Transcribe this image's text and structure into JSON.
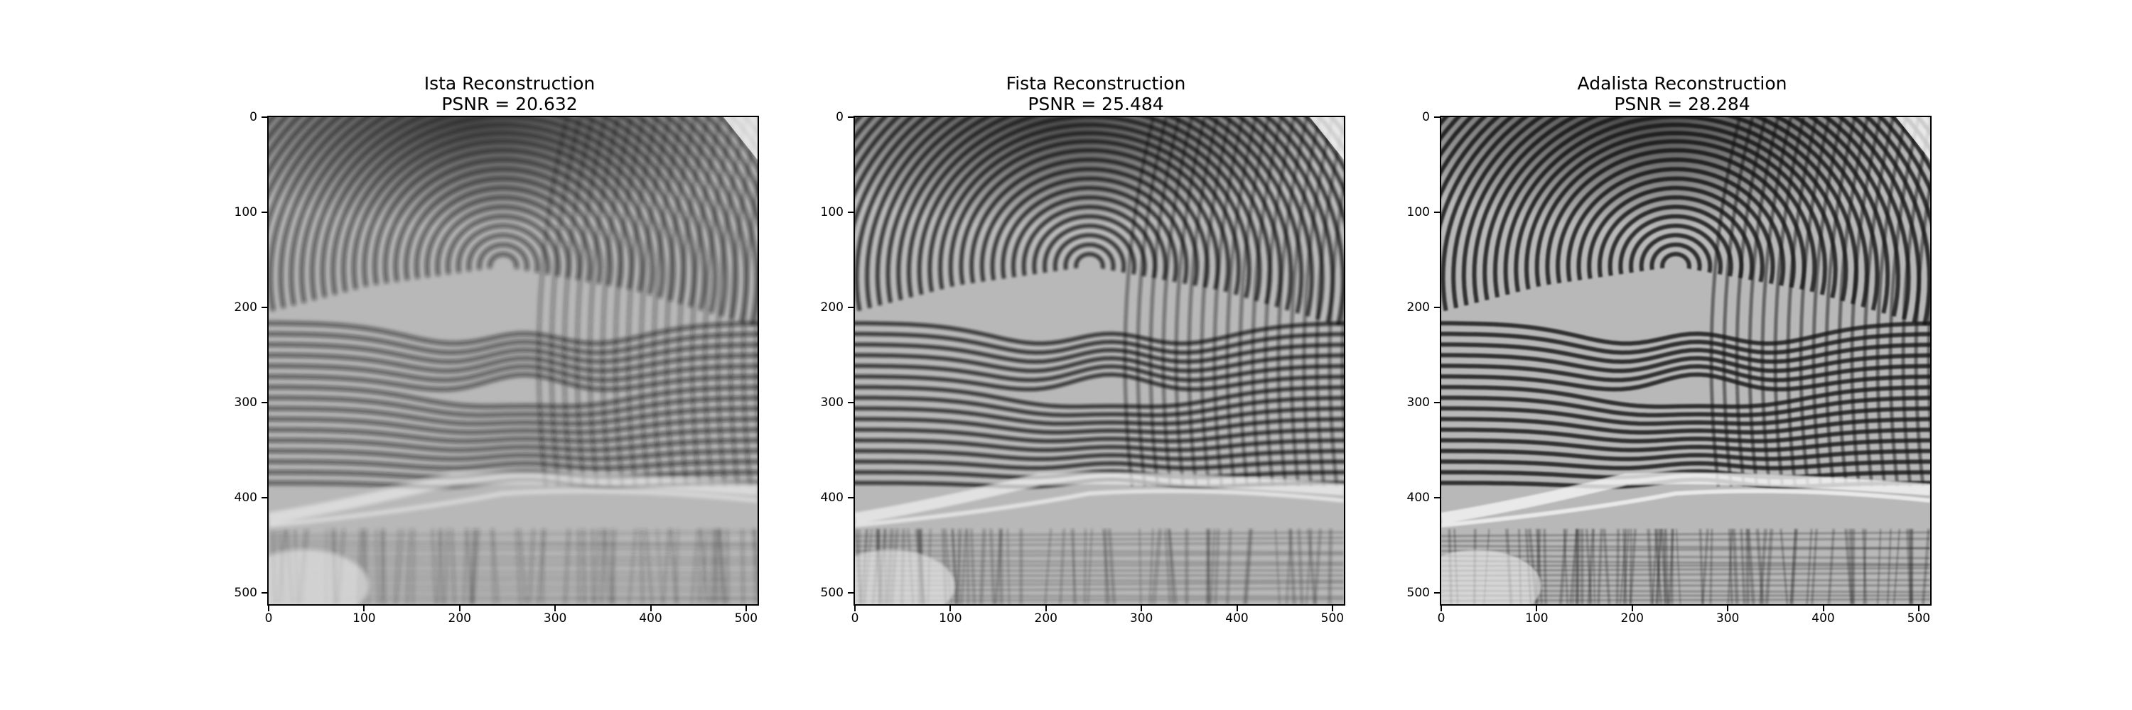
{
  "panels": [
    {
      "title_line1": "Ista Reconstruction",
      "title_line2": "PSNR = 20.632",
      "blur": 2.6,
      "contrast": 0.7
    },
    {
      "title_line1": "Fista Reconstruction",
      "title_line2": "PSNR = 25.484",
      "blur": 1.5,
      "contrast": 0.85
    },
    {
      "title_line1": "Adalista Reconstruction",
      "title_line2": "PSNR = 28.284",
      "blur": 1.0,
      "contrast": 1.0
    }
  ],
  "axis": {
    "x_ticks": [
      "0",
      "100",
      "200",
      "300",
      "400",
      "500"
    ],
    "y_ticks": [
      "0",
      "100",
      "200",
      "300",
      "400",
      "500"
    ],
    "x_range": [
      0,
      511
    ],
    "y_range": [
      0,
      511
    ]
  },
  "image": {
    "content": "fingerprint reconstruction (grayscale)",
    "colormap": "gray"
  }
}
